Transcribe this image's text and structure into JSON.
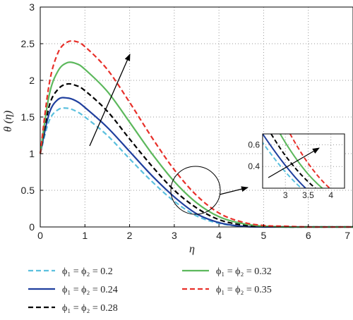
{
  "chart_data": {
    "type": "line",
    "xlabel": "η",
    "ylabel": "θ (η)",
    "xlim": [
      0,
      7
    ],
    "ylim": [
      0,
      3
    ],
    "xticks": [
      "0",
      "1",
      "2",
      "3",
      "4",
      "5",
      "6",
      "7"
    ],
    "yticks": [
      "0",
      "0.5",
      "1",
      "1.5",
      "2",
      "2.5",
      "3"
    ],
    "grid": true,
    "legend_position": "bottom",
    "series": [
      {
        "name": "ϕ₁ = ϕ₂ = 0.2",
        "color": "#5bc0de",
        "dash": "dashed",
        "x": [
          0,
          0.2,
          0.4,
          0.6,
          0.8,
          1.0,
          1.5,
          2.0,
          2.5,
          3.0,
          3.5,
          4.0,
          4.5,
          5.0,
          5.5,
          6.0,
          7.0
        ],
        "y": [
          1.0,
          1.45,
          1.6,
          1.62,
          1.58,
          1.5,
          1.25,
          0.93,
          0.62,
          0.35,
          0.15,
          0.05,
          0.01,
          0,
          0,
          0,
          0
        ]
      },
      {
        "name": "ϕ₁ = ϕ₂ = 0.24",
        "color": "#1f3f9e",
        "dash": "solid",
        "x": [
          0,
          0.2,
          0.4,
          0.6,
          0.8,
          1.0,
          1.5,
          2.0,
          2.5,
          3.0,
          3.5,
          4.0,
          4.5,
          5.0,
          5.5,
          6.0,
          7.0
        ],
        "y": [
          1.0,
          1.55,
          1.74,
          1.76,
          1.72,
          1.63,
          1.36,
          1.03,
          0.7,
          0.41,
          0.18,
          0.06,
          0.01,
          0,
          0,
          0,
          0
        ]
      },
      {
        "name": "ϕ₁ = ϕ₂ = 0.28",
        "color": "#000000",
        "dash": "dashed",
        "x": [
          0,
          0.2,
          0.4,
          0.6,
          0.8,
          1.0,
          1.5,
          2.0,
          2.5,
          3.0,
          3.5,
          4.0,
          4.5,
          5.0,
          5.5,
          6.0,
          7.0
        ],
        "y": [
          1.0,
          1.65,
          1.88,
          1.95,
          1.93,
          1.86,
          1.58,
          1.2,
          0.83,
          0.5,
          0.26,
          0.1,
          0.03,
          0.01,
          0,
          0,
          0
        ]
      },
      {
        "name": "ϕ₁ = ϕ₂ = 0.32",
        "color": "#5cb85c",
        "dash": "solid",
        "x": [
          0,
          0.2,
          0.4,
          0.6,
          0.8,
          1.0,
          1.5,
          2.0,
          2.5,
          3.0,
          3.5,
          4.0,
          4.5,
          5.0,
          5.5,
          6.0,
          7.0
        ],
        "y": [
          1.0,
          1.8,
          2.13,
          2.24,
          2.23,
          2.15,
          1.85,
          1.43,
          1.0,
          0.62,
          0.33,
          0.14,
          0.05,
          0.01,
          0,
          0,
          0
        ]
      },
      {
        "name": "ϕ₁ = ϕ₂ = 0.35",
        "color": "#e8302a",
        "dash": "dashed",
        "x": [
          0,
          0.2,
          0.4,
          0.6,
          0.8,
          1.0,
          1.5,
          2.0,
          2.5,
          3.0,
          3.5,
          4.0,
          4.5,
          5.0,
          5.5,
          6.0,
          7.0
        ],
        "y": [
          1.0,
          1.95,
          2.38,
          2.52,
          2.53,
          2.46,
          2.15,
          1.7,
          1.22,
          0.78,
          0.43,
          0.19,
          0.07,
          0.02,
          0.01,
          0,
          0
        ]
      }
    ],
    "inset": {
      "xlim": [
        2.5,
        4.3
      ],
      "ylim": [
        0.2,
        0.7
      ],
      "xticks": [
        "3",
        "3.5",
        "4"
      ],
      "yticks": [
        "0.4",
        "0.6"
      ]
    }
  }
}
